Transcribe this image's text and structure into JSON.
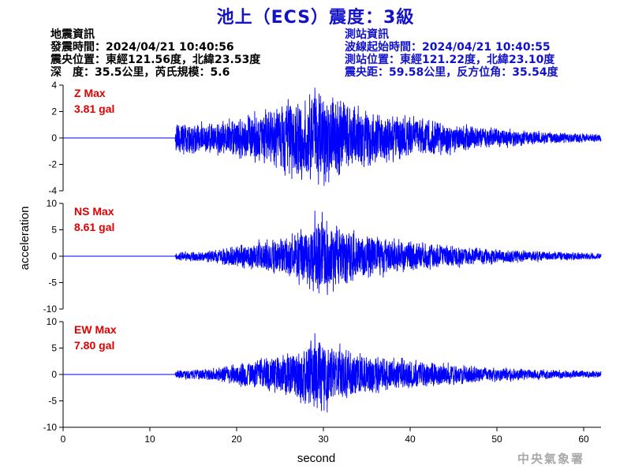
{
  "title": "池上（ECS）震度：3級",
  "earthquake_info": {
    "header": "地震資訊",
    "origin_time": "發震時間：2024/04/21 10:40:56",
    "epicenter": "震央位置：東經121.56度，北緯23.53度",
    "depth_magnitude": "深　度：35.5公里，芮氏規模：5.6"
  },
  "station_info": {
    "header": "測站資訊",
    "wave_start": "波線起始時間：2024/04/21 10:40:55",
    "station_location": "測站位置：東經121.22度，北緯23.10度",
    "distance": "震央距：59.58公里，反方位角：35.54度"
  },
  "footer": "中央氣象署",
  "colors": {
    "title": "#1212c8",
    "trace": "#0000ff",
    "max_label": "#e00000",
    "info_right": "#1212c8",
    "footer": "#a9a9a9"
  },
  "chart_data": {
    "type": "line",
    "xlabel": "second",
    "ylabel": "acceleration",
    "xlim": [
      0,
      62
    ],
    "x_ticks": [
      0,
      10,
      20,
      30,
      40,
      50,
      60
    ],
    "panels": [
      {
        "component": "Z",
        "max_label": "Z Max",
        "max_value": "3.81 gal",
        "max": 3.81,
        "ylim": [
          -4,
          4
        ],
        "y_ticks": [
          4,
          2,
          0,
          -2,
          -4
        ]
      },
      {
        "component": "NS",
        "max_label": "NS Max",
        "max_value": "8.61 gal",
        "max": 8.61,
        "ylim": [
          -10,
          10
        ],
        "y_ticks": [
          10,
          5,
          0,
          -5,
          -10
        ]
      },
      {
        "component": "EW",
        "max_label": "EW Max",
        "max_value": "7.80 gal",
        "max": 7.8,
        "ylim": [
          -10,
          10
        ],
        "y_ticks": [
          10,
          5,
          0,
          -5,
          -10
        ]
      }
    ],
    "signal": {
      "onset_s": 13,
      "peak_s": 29,
      "envelope_s": [
        0,
        12.9,
        13,
        17,
        20,
        25,
        28,
        30,
        33,
        37,
        42,
        48,
        55,
        62
      ],
      "envelope_z": [
        0,
        0,
        1.2,
        1.3,
        1.6,
        2.6,
        3.5,
        3.8,
        2.6,
        2.0,
        1.5,
        0.9,
        0.5,
        0.3
      ],
      "envelope_ns": [
        0,
        0,
        0.8,
        1.2,
        2.2,
        3.8,
        5.5,
        8.6,
        5.0,
        3.8,
        2.8,
        1.6,
        1.0,
        0.6
      ],
      "envelope_ew": [
        0,
        0,
        0.8,
        1.2,
        2.2,
        4.0,
        6.0,
        7.8,
        5.0,
        3.6,
        2.6,
        1.6,
        1.0,
        0.7
      ]
    }
  }
}
